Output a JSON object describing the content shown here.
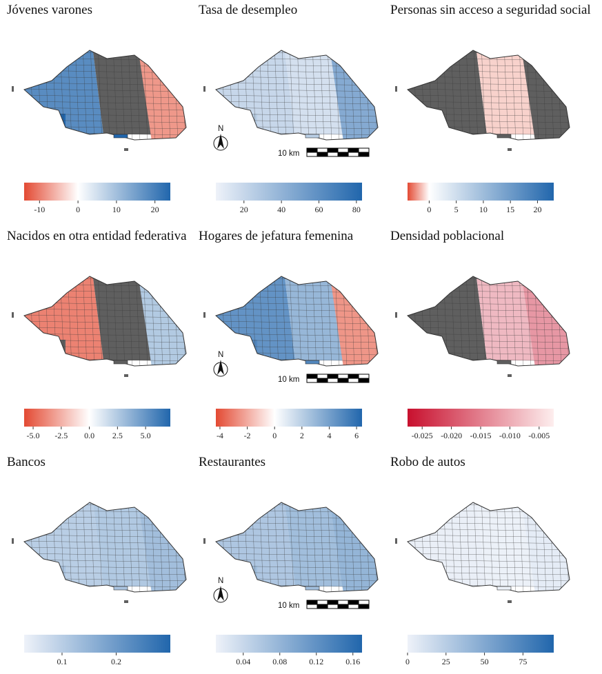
{
  "colors": {
    "neg": "#e34a33",
    "neutral": "#ffffff",
    "pos": "#2166ac",
    "na": "#5f5f5f",
    "border": "#555555"
  },
  "scalebar_label": "10 km",
  "north_label": "N",
  "chart_data": [
    {
      "type": "choropleth",
      "title": "Jóvenes varones",
      "legend": {
        "kind": "diverging",
        "min": -14,
        "max": 24,
        "ticks": [
          -10,
          0,
          10,
          20
        ],
        "tick_labels": [
          "-10",
          "0",
          "10",
          "20"
        ]
      },
      "regions": {
        "west": 18,
        "center": "NA",
        "east": -8,
        "southwest": 24
      }
    },
    {
      "type": "choropleth",
      "title": "Tasa de desempleo",
      "legend": {
        "kind": "sequential",
        "min": 5,
        "max": 83,
        "ticks": [
          20,
          40,
          60,
          80
        ],
        "tick_labels": [
          "20",
          "40",
          "60",
          "80"
        ]
      },
      "regions": {
        "west": 20,
        "center": 15,
        "east": 45,
        "southwest": 25
      }
    },
    {
      "type": "choropleth",
      "title": "Personas sin acceso a seguridad social",
      "legend": {
        "kind": "diverging",
        "min": -4,
        "max": 23,
        "ticks": [
          0,
          5,
          10,
          15,
          20
        ],
        "tick_labels": [
          "0",
          "5",
          "10",
          "15",
          "20"
        ]
      },
      "regions": {
        "west": "NA",
        "center": -1,
        "east": "NA",
        "southwest": "NA"
      }
    },
    {
      "type": "choropleth",
      "title": "Nacidos en otra entidad federativa",
      "legend": {
        "kind": "diverging",
        "min": -5.8,
        "max": 7.2,
        "ticks": [
          -5,
          -2.5,
          0,
          2.5,
          5
        ],
        "tick_labels": [
          "-5.0",
          "-2.5",
          "0.0",
          "2.5",
          "5.0"
        ]
      },
      "regions": {
        "west": -4,
        "center": "NA",
        "east": 2.5,
        "southwest": "NA"
      }
    },
    {
      "type": "choropleth",
      "title": "Hogares de jefatura femenina",
      "legend": {
        "kind": "diverging",
        "min": -4.3,
        "max": 6.4,
        "ticks": [
          -4,
          -2,
          0,
          2,
          4,
          6
        ],
        "tick_labels": [
          "-4",
          "-2",
          "0",
          "2",
          "4",
          "6"
        ]
      },
      "regions": {
        "west": 4.5,
        "center": 3,
        "east": -2.5,
        "southwest": 5
      }
    },
    {
      "type": "choropleth",
      "title": "Densidad poblacional",
      "legend": {
        "kind": "diverging",
        "min": -0.0275,
        "max": -0.0025,
        "ticks": [
          -0.025,
          -0.02,
          -0.015,
          -0.01,
          -0.005
        ],
        "tick_labels": [
          "-0.025",
          "-0.020",
          "-0.015",
          "-0.010",
          "-0.005"
        ]
      },
      "regions": {
        "west": "NA",
        "center": -0.008,
        "east": -0.012,
        "southwest": "NA"
      }
    },
    {
      "type": "choropleth",
      "title": "Bancos",
      "legend": {
        "kind": "sequential",
        "min": 0.03,
        "max": 0.3,
        "ticks": [
          0.1,
          0.2
        ],
        "tick_labels": [
          "0.1",
          "0.2"
        ]
      },
      "regions": {
        "west": 0.1,
        "center": 0.11,
        "east": 0.13,
        "southwest": 0.12
      }
    },
    {
      "type": "choropleth",
      "title": "Restaurantes",
      "legend": {
        "kind": "sequential",
        "min": 0.01,
        "max": 0.17,
        "ticks": [
          0.04,
          0.08,
          0.12,
          0.16
        ],
        "tick_labels": [
          "0.04",
          "0.08",
          "0.12",
          "0.16"
        ]
      },
      "regions": {
        "west": 0.06,
        "center": 0.07,
        "east": 0.08,
        "southwest": 0.07
      }
    },
    {
      "type": "choropleth",
      "title": "Robo de autos",
      "legend": {
        "kind": "sequential",
        "min": 0,
        "max": 95,
        "ticks": [
          0,
          25,
          50,
          75
        ],
        "tick_labels": [
          "0",
          "25",
          "50",
          "75"
        ]
      },
      "regions": {
        "west": 2,
        "center": 1,
        "east": 4,
        "southwest": 1
      }
    }
  ]
}
